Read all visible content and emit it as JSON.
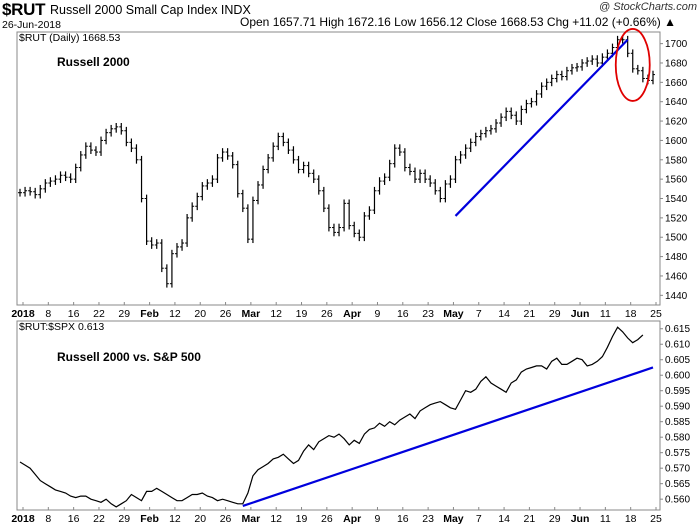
{
  "header": {
    "symbol": "$RUT",
    "name": "Russell 2000 Small Cap Index INDX",
    "date": "26-Jun-2018",
    "ohlc": "Open 1657.71  High 1672.16  Low 1656.12  Close 1668.53  Chg +11.02 (+0.66%) ▲",
    "credit": "@ StockCharts.com"
  },
  "chart_data": [
    {
      "type": "ohlc",
      "legend": "$RUT (Daily) 1668.53",
      "annotation": "Russell 2000",
      "yticks": [
        "1700",
        "1680",
        "1660",
        "1640",
        "1620",
        "1600",
        "1580",
        "1560",
        "1540",
        "1520",
        "1500",
        "1480",
        "1460",
        "1440"
      ],
      "ylim": [
        1430,
        1712
      ],
      "xticks": [
        {
          "label": "2018",
          "bold": true
        },
        {
          "label": "8"
        },
        {
          "label": "16"
        },
        {
          "label": "22"
        },
        {
          "label": "29"
        },
        {
          "label": "Feb",
          "bold": true
        },
        {
          "label": "12"
        },
        {
          "label": "20"
        },
        {
          "label": "26"
        },
        {
          "label": "Mar",
          "bold": true
        },
        {
          "label": "12"
        },
        {
          "label": "19"
        },
        {
          "label": "26"
        },
        {
          "label": "Apr",
          "bold": true
        },
        {
          "label": "9"
        },
        {
          "label": "16"
        },
        {
          "label": "23"
        },
        {
          "label": "May",
          "bold": true
        },
        {
          "label": "7"
        },
        {
          "label": "14"
        },
        {
          "label": "21"
        },
        {
          "label": "29"
        },
        {
          "label": "Jun",
          "bold": true
        },
        {
          "label": "11"
        },
        {
          "label": "18"
        },
        {
          "label": "25"
        }
      ],
      "closes": [
        1546,
        1548,
        1547,
        1544,
        1550,
        1556,
        1558,
        1560,
        1564,
        1562,
        1560,
        1572,
        1585,
        1594,
        1590,
        1588,
        1600,
        1608,
        1612,
        1614,
        1610,
        1598,
        1592,
        1580,
        1540,
        1496,
        1492,
        1494,
        1468,
        1452,
        1483,
        1490,
        1494,
        1520,
        1532,
        1542,
        1553,
        1556,
        1560,
        1582,
        1588,
        1584,
        1575,
        1545,
        1530,
        1498,
        1538,
        1554,
        1570,
        1582,
        1594,
        1604,
        1598,
        1590,
        1580,
        1570,
        1574,
        1566,
        1560,
        1548,
        1530,
        1510,
        1505,
        1510,
        1535,
        1512,
        1504,
        1500,
        1522,
        1528,
        1548,
        1558,
        1562,
        1576,
        1592,
        1588,
        1572,
        1568,
        1560,
        1566,
        1560,
        1556,
        1548,
        1540,
        1555,
        1560,
        1580,
        1585,
        1592,
        1598,
        1604,
        1607,
        1610,
        1612,
        1618,
        1624,
        1630,
        1626,
        1620,
        1632,
        1638,
        1640,
        1648,
        1656,
        1660,
        1664,
        1668,
        1666,
        1672,
        1675,
        1676,
        1680,
        1682,
        1684,
        1680,
        1686,
        1690,
        1696,
        1704,
        1704,
        1690,
        1674,
        1672,
        1664,
        1662,
        1668
      ],
      "trendline": {
        "from": [
          86,
          1522
        ],
        "to": [
          120,
          1704
        ]
      }
    },
    {
      "type": "line",
      "legend": "$RUT:$SPX 0.613",
      "annotation": "Russell 2000 vs. S&P 500",
      "yticks": [
        "0.615",
        "0.610",
        "0.605",
        "0.600",
        "0.595",
        "0.590",
        "0.585",
        "0.580",
        "0.575",
        "0.570",
        "0.565",
        "0.560"
      ],
      "ylim": [
        0.5565,
        0.6175
      ],
      "values": [
        0.572,
        0.571,
        0.57,
        0.568,
        0.566,
        0.565,
        0.564,
        0.563,
        0.5625,
        0.562,
        0.561,
        0.5605,
        0.561,
        0.561,
        0.56,
        0.5595,
        0.559,
        0.56,
        0.5585,
        0.5575,
        0.5585,
        0.5595,
        0.5615,
        0.5605,
        0.5595,
        0.5625,
        0.5625,
        0.5635,
        0.5625,
        0.5615,
        0.5605,
        0.5595,
        0.5595,
        0.5605,
        0.5615,
        0.5615,
        0.562,
        0.561,
        0.5605,
        0.5595,
        0.56,
        0.5595,
        0.559,
        0.5585,
        0.5585,
        0.562,
        0.5675,
        0.5695,
        0.5705,
        0.5715,
        0.573,
        0.5735,
        0.5745,
        0.573,
        0.5715,
        0.5725,
        0.5755,
        0.5775,
        0.576,
        0.5785,
        0.5795,
        0.5805,
        0.58,
        0.581,
        0.5795,
        0.5775,
        0.579,
        0.578,
        0.581,
        0.5825,
        0.583,
        0.5845,
        0.5835,
        0.585,
        0.584,
        0.5855,
        0.5865,
        0.5875,
        0.586,
        0.5885,
        0.5895,
        0.5905,
        0.591,
        0.5915,
        0.5905,
        0.5895,
        0.589,
        0.592,
        0.595,
        0.5945,
        0.5955,
        0.598,
        0.5995,
        0.5975,
        0.5965,
        0.5955,
        0.5945,
        0.5975,
        0.5985,
        0.601,
        0.602,
        0.6025,
        0.603,
        0.603,
        0.602,
        0.6045,
        0.6055,
        0.6035,
        0.6035,
        0.6045,
        0.6055,
        0.605,
        0.603,
        0.6035,
        0.6045,
        0.606,
        0.609,
        0.6125,
        0.6155,
        0.614,
        0.612,
        0.6105,
        0.6115,
        0.613
      ],
      "trendline": {
        "from": [
          44,
          0.5578
        ],
        "to": [
          125,
          0.6025
        ]
      }
    }
  ],
  "highlight": {
    "color": "#e00000",
    "label": "red-ellipse"
  },
  "colors": {
    "trendline": "#0000dd",
    "bars": "#000000",
    "panel_border": "#888888"
  }
}
